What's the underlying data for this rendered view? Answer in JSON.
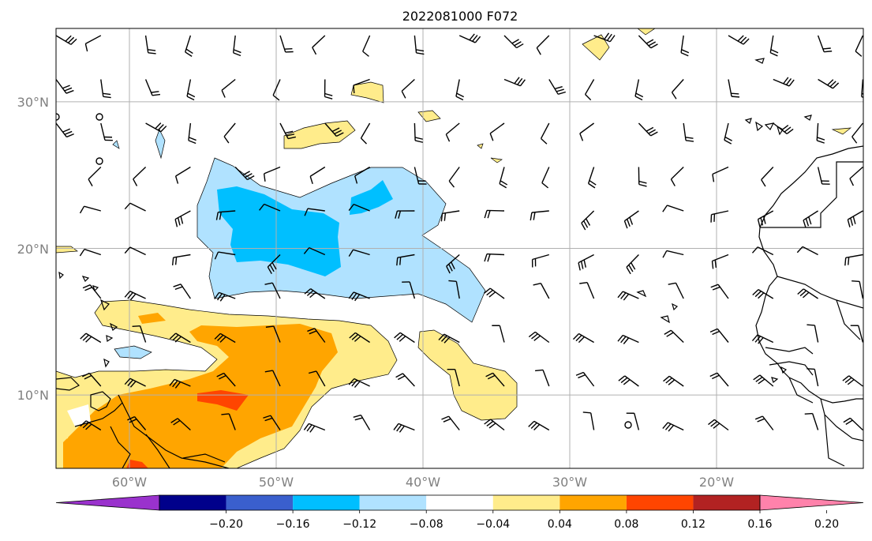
{
  "title": "2022081000 F072",
  "map": {
    "lat_labels": [
      "30°N",
      "20°N",
      "10°N"
    ],
    "lat_values": [
      30,
      20,
      10
    ],
    "lon_labels": [
      "60°W",
      "50°W",
      "40°W",
      "30°W",
      "20°W"
    ],
    "lon_values": [
      -60,
      -50,
      -40,
      -30,
      -20
    ],
    "extent": {
      "lon_min": -65,
      "lon_max": -10,
      "lat_min": 5,
      "lat_max": 35
    },
    "gridlines": true
  },
  "colorbar": {
    "tick_labels": [
      "−0.20",
      "−0.16",
      "−0.12",
      "−0.08",
      "−0.04",
      "0.04",
      "0.08",
      "0.12",
      "0.16",
      "0.20"
    ],
    "levels": [
      -0.2,
      -0.16,
      -0.12,
      -0.08,
      -0.04,
      0.04,
      0.08,
      0.12,
      0.16,
      0.2
    ],
    "colors": [
      "#9a32cd",
      "#00008b",
      "#3a5fcd",
      "#00bfff",
      "#b0e2ff",
      "#ffffff",
      "#ffec8b",
      "#ffa500",
      "#ff4500",
      "#b22222",
      "#ff82ab"
    ],
    "extend": "both"
  },
  "fills": {
    "light_blue": "#b0e2ff",
    "blue": "#00bfff",
    "yellow": "#ffec8b",
    "orange": "#ffa500",
    "red": "#ff4500"
  },
  "barbs": {
    "symbol": "wind-barb",
    "color": "#000000"
  }
}
